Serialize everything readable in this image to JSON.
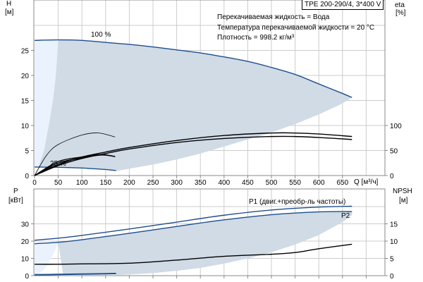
{
  "chart_data": [
    {
      "type": "line",
      "title": "TPE 200-290/4, 3*400 V",
      "notes": [
        "Перекачиваемая жидкость = Вода",
        "Температура перекачиваемой жидкости = 20 °C",
        "Плотность = 998.2 кг/м³"
      ],
      "xlabel": "Q [м³/ч]",
      "ylabel": "H",
      "ylabel_unit": "[м]",
      "y2label": "eta",
      "y2label_unit": "[%]",
      "xlim": [
        0,
        740
      ],
      "ylim": [
        0,
        30
      ],
      "y2lim": [
        0,
        300
      ],
      "xticks": [
        0,
        50,
        100,
        150,
        200,
        250,
        300,
        350,
        400,
        450,
        500,
        550,
        600,
        650
      ],
      "yticks": [
        0,
        5,
        10,
        15,
        20,
        25
      ],
      "y2ticks": [
        0,
        50,
        100
      ],
      "grid": true,
      "curve_labels": {
        "max": "100 %",
        "min": "25 %"
      },
      "series": [
        {
          "id": "H_100",
          "axis": "H",
          "color": "#1f4e8c",
          "x": [
            0,
            50,
            100,
            150,
            200,
            250,
            300,
            350,
            400,
            450,
            500,
            550,
            600,
            650,
            670
          ],
          "y": [
            27.0,
            27.1,
            27.0,
            26.6,
            26.2,
            25.7,
            25.1,
            24.5,
            23.7,
            22.8,
            21.6,
            20.2,
            18.3,
            16.4,
            15.6
          ]
        },
        {
          "id": "H_25",
          "axis": "H",
          "color": "#1f4e8c",
          "x": [
            0,
            50,
            100,
            150,
            172
          ],
          "y": [
            1.7,
            1.65,
            1.5,
            1.2,
            1.0
          ]
        },
        {
          "id": "eta_100_a",
          "axis": "eta",
          "color": "#000000",
          "x": [
            0,
            50,
            100,
            150,
            200,
            300,
            400,
            500,
            550,
            600,
            670
          ],
          "y": [
            0,
            22,
            37,
            47,
            56,
            70,
            80,
            85,
            85,
            83,
            78
          ]
        },
        {
          "id": "eta_100_b",
          "axis": "eta",
          "color": "#000000",
          "x": [
            0,
            50,
            100,
            150,
            200,
            300,
            400,
            500,
            550,
            600,
            670
          ],
          "y": [
            0,
            20,
            34,
            44,
            53,
            66,
            74,
            78,
            78,
            76,
            72
          ]
        },
        {
          "id": "eta_25_a",
          "axis": "eta",
          "color": "#000000",
          "x": [
            0,
            25,
            50,
            100,
            135,
            170
          ],
          "y": [
            0,
            40,
            62,
            81,
            85,
            77
          ]
        },
        {
          "id": "eta_25_b",
          "axis": "eta",
          "color": "#000000",
          "x": [
            0,
            50,
            100,
            140,
            170
          ],
          "y": [
            0,
            28,
            37,
            42,
            38
          ]
        },
        {
          "id": "eta_25_c",
          "axis": "eta",
          "color": "#000000",
          "x": [
            0,
            50,
            100,
            140,
            170
          ],
          "y": [
            0,
            25,
            35,
            41,
            38
          ]
        }
      ],
      "region_lower": {
        "x": [
          172,
          250,
          300,
          350,
          400,
          450,
          500,
          550,
          600,
          650,
          670
        ],
        "y": [
          0.9,
          2.2,
          3.2,
          4.4,
          5.8,
          7.2,
          8.6,
          10.3,
          12.2,
          14.4,
          15.6
        ]
      },
      "region_left": {
        "x": [
          8,
          20,
          30,
          39,
          45,
          50
        ],
        "y": [
          1.7,
          5,
          10,
          15,
          20,
          27.1
        ]
      },
      "colors": {
        "region": "#d0dbe6",
        "region_light": "#eaf3fd",
        "curve": "#1f4e8c",
        "grid": "#cccccc"
      }
    },
    {
      "type": "line",
      "ylabel": "P",
      "ylabel_unit": "[кВт]",
      "y2label": "NPSH",
      "y2label_unit": "[м]",
      "xlim": [
        0,
        740
      ],
      "ylim": [
        0,
        45
      ],
      "y2lim": [
        0,
        22.5
      ],
      "yticks": [
        0,
        10,
        20,
        30
      ],
      "y2ticks": [
        0,
        5,
        10,
        15
      ],
      "grid": true,
      "series": [
        {
          "id": "P1",
          "name": "P1 (двиг.+преобр-ль частоты)",
          "axis": "P",
          "color": "#1f4e8c",
          "x": [
            0,
            50,
            100,
            200,
            300,
            400,
            500,
            600,
            670
          ],
          "y": [
            20.5,
            21.7,
            23.3,
            27.0,
            31.0,
            35.0,
            38.0,
            39.7,
            40.2
          ]
        },
        {
          "id": "P2",
          "name": "P2",
          "axis": "P",
          "color": "#1f4e8c",
          "x": [
            0,
            50,
            100,
            200,
            300,
            400,
            500,
            600,
            670
          ],
          "y": [
            18.5,
            19.3,
            20.8,
            24.5,
            28.5,
            32.3,
            35.3,
            36.9,
            37.1
          ]
        },
        {
          "id": "P_25",
          "axis": "P",
          "color": "#1f4e8c",
          "x": [
            0,
            50,
            100,
            172
          ],
          "y": [
            0.5,
            0.7,
            0.9,
            1.2
          ]
        },
        {
          "id": "NPSH",
          "axis": "NPSH",
          "color": "#000000",
          "x": [
            0,
            50,
            100,
            200,
            300,
            400,
            500,
            550,
            600,
            670
          ],
          "y": [
            3.3,
            3.3,
            3.4,
            3.6,
            4.5,
            5.6,
            6.2,
            6.7,
            7.8,
            9.1
          ]
        }
      ],
      "region_lower": {
        "x": [
          172,
          250,
          300,
          350,
          400,
          450,
          500,
          550,
          600,
          650,
          670
        ],
        "y": [
          0.3,
          1.5,
          2.8,
          4.5,
          7,
          10,
          13.5,
          18,
          23.5,
          31,
          35
        ]
      }
    }
  ]
}
